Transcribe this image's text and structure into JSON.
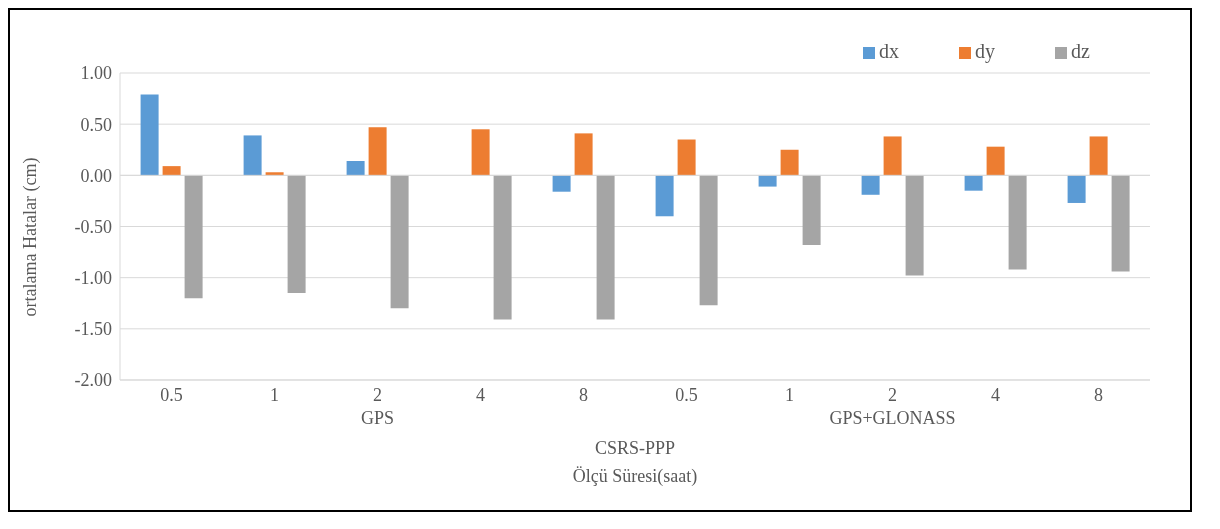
{
  "chart_data": {
    "type": "bar",
    "xlabel": "Ölçü Süresi(saat)",
    "ylabel": "ortalama Hatalar (cm)",
    "categories": [
      "0.5",
      "1",
      "2",
      "4",
      "8",
      "0.5",
      "1",
      "2",
      "4",
      "8"
    ],
    "series": [
      {
        "name": "dx",
        "color": "#5b9bd5",
        "values": [
          0.79,
          0.39,
          0.14,
          0,
          -0.16,
          -0.4,
          -0.11,
          -0.19,
          -0.15,
          -0.27
        ]
      },
      {
        "name": "dy",
        "color": "#ed7d31",
        "values": [
          0.09,
          0.03,
          0.47,
          0.45,
          0.41,
          0.35,
          0.25,
          0.38,
          0.28,
          0.38
        ]
      },
      {
        "name": "dz",
        "color": "#a5a5a5",
        "values": [
          -1.2,
          -1.15,
          -1.3,
          -1.41,
          -1.41,
          -1.27,
          -0.68,
          -0.98,
          -0.92,
          -0.94
        ]
      }
    ],
    "annotations": [
      "GPS",
      "GPS+GLONASS",
      "CSRS-PPP"
    ],
    "ylim": [
      -2,
      1
    ],
    "yticks": [
      {
        "value": -2,
        "label": "-2.00"
      },
      {
        "value": -1.5,
        "label": "-1.50"
      },
      {
        "value": -1,
        "label": "-1.00"
      },
      {
        "value": -0.5,
        "label": "-0.50"
      },
      {
        "value": 0,
        "label": "0.00"
      },
      {
        "value": 0.5,
        "label": "0.50"
      },
      {
        "value": 1,
        "label": "1.00"
      }
    ],
    "grid": "y",
    "legend": "top right"
  }
}
